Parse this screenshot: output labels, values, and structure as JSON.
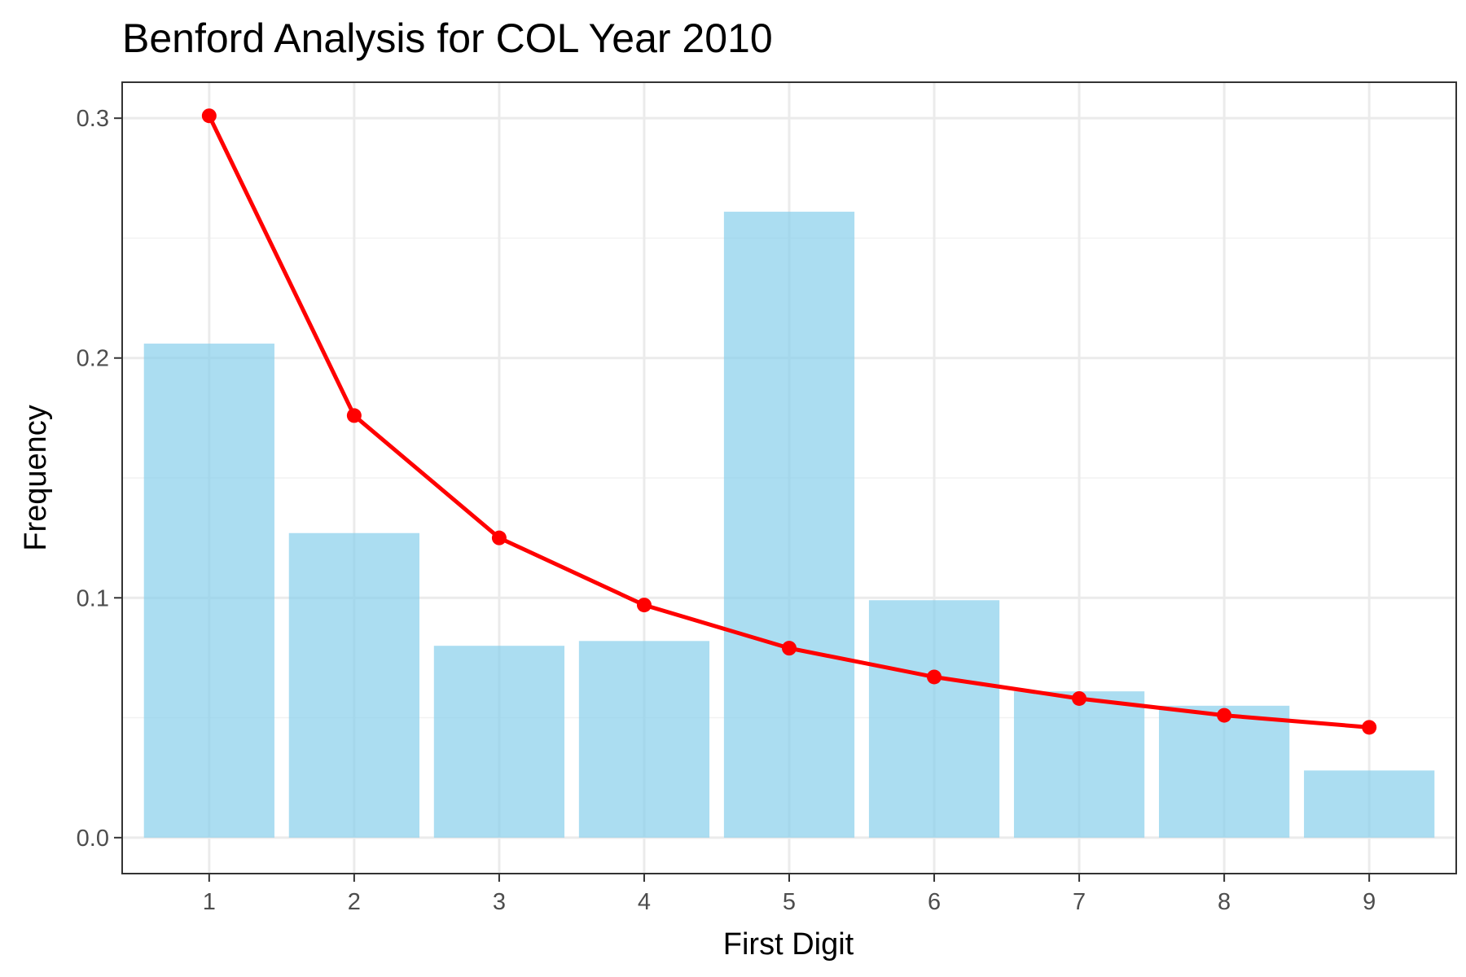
{
  "chart_data": {
    "type": "bar",
    "title": "Benford Analysis for COL Year 2010",
    "xlabel": "First Digit",
    "ylabel": "Frequency",
    "categories": [
      "1",
      "2",
      "3",
      "4",
      "5",
      "6",
      "7",
      "8",
      "9"
    ],
    "series": [
      {
        "type": "bar",
        "values": [
          0.206,
          0.127,
          0.08,
          0.082,
          0.261,
          0.099,
          0.061,
          0.055,
          0.028
        ],
        "color": "#87CEEB"
      },
      {
        "type": "line",
        "values": [
          0.301,
          0.176,
          0.125,
          0.097,
          0.079,
          0.067,
          0.058,
          0.051,
          0.046
        ],
        "color": "#FF0000"
      }
    ],
    "ylim": [
      -0.015,
      0.315
    ],
    "y_ticks": [
      0.0,
      0.1,
      0.2,
      0.3
    ],
    "y_tick_labels": [
      "0.0",
      "0.1",
      "0.2",
      "0.3"
    ],
    "grid": true,
    "legend": "none"
  }
}
